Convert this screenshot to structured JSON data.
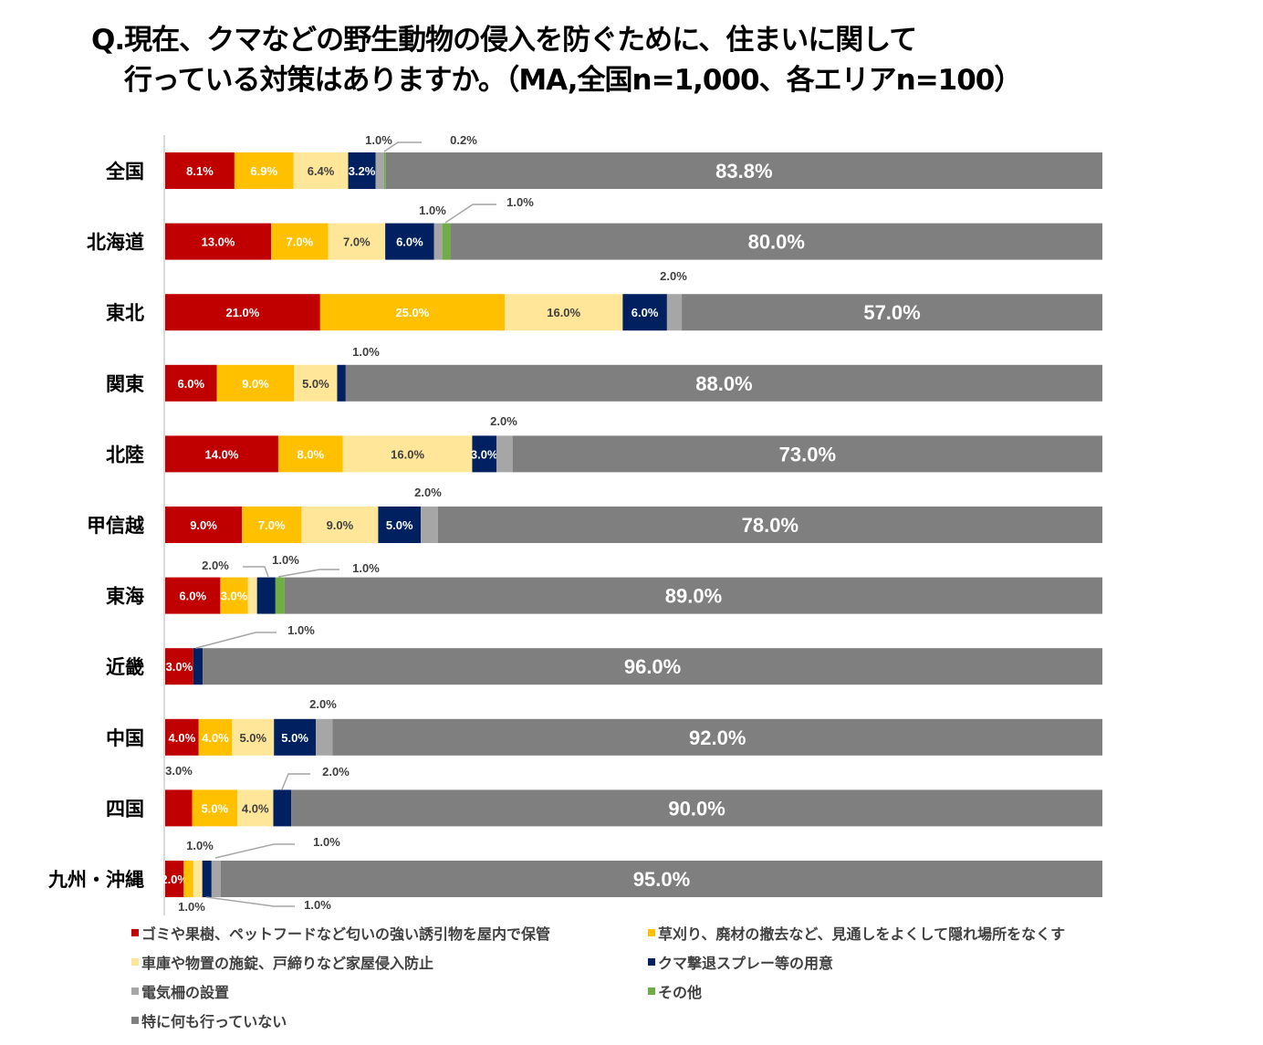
{
  "title": {
    "line1": "Q.現在、クマなどの野生動物の侵入を防ぐために、住まいに関して",
    "line2": "行っている対策はありますか。（MA,全国n=1,000、各エリアn=100）"
  },
  "chart_data": {
    "type": "bar",
    "orientation": "horizontal",
    "stacked": true,
    "normalized_per_row": true,
    "title": "Q.現在、クマなどの野生動物の侵入を防ぐために、住まいに関して行っている対策はありますか。（MA,全国n=1,000、各エリアn=100）",
    "xlabel": "",
    "ylabel": "",
    "grid": false,
    "legend_position": "bottom",
    "categories": [
      "全国",
      "北海道",
      "東北",
      "関東",
      "北陸",
      "甲信越",
      "東海",
      "近畿",
      "中国",
      "四国",
      "九州・沖縄"
    ],
    "series": [
      {
        "name": "ゴミや果樹、ペットフードなど匂いの強い誘引物を屋内で保管",
        "color": "#C00000",
        "values": [
          8.1,
          13.0,
          21.0,
          6.0,
          14.0,
          9.0,
          6.0,
          3.0,
          4.0,
          3.0,
          2.0
        ]
      },
      {
        "name": "草刈り、廃材の撤去など、見通しをよくして隠れ場所をなくす",
        "color": "#FFC000",
        "values": [
          6.9,
          7.0,
          25.0,
          9.0,
          8.0,
          7.0,
          3.0,
          0,
          4.0,
          5.0,
          1.0
        ]
      },
      {
        "name": "車庫や物置の施錠、戸締りなど家屋侵入防止",
        "color": "#FFE699",
        "values": [
          6.4,
          7.0,
          16.0,
          5.0,
          16.0,
          9.0,
          1.0,
          0,
          5.0,
          4.0,
          1.0
        ]
      },
      {
        "name": "クマ撃退スプレー等の用意",
        "color": "#002060",
        "values": [
          3.2,
          6.0,
          6.0,
          1.0,
          3.0,
          5.0,
          2.0,
          1.0,
          5.0,
          2.0,
          1.0
        ]
      },
      {
        "name": "電気柵の設置",
        "color": "#A6A6A6",
        "values": [
          1.0,
          1.0,
          2.0,
          0,
          2.0,
          2.0,
          0,
          0,
          2.0,
          0,
          1.0
        ]
      },
      {
        "name": "その他",
        "color": "#70AD47",
        "values": [
          0.2,
          1.0,
          0,
          0,
          0,
          0,
          1.0,
          0,
          0,
          0,
          0
        ]
      },
      {
        "name": "特に何も行っていない",
        "color": "#7F7F7F",
        "values": [
          83.8,
          80.0,
          57.0,
          88.0,
          73.0,
          78.0,
          89.0,
          96.0,
          92.0,
          90.0,
          95.0
        ]
      }
    ]
  }
}
